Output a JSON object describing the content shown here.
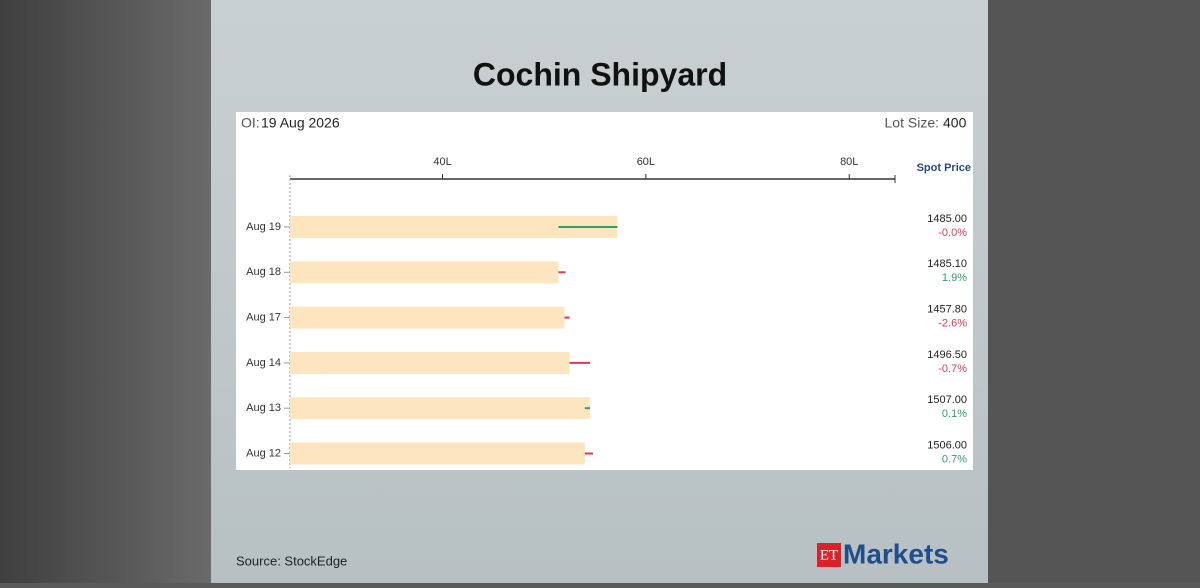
{
  "chart_data": {
    "type": "oi-bar",
    "title": "Cochin Shipyard",
    "oi_label": "OI:",
    "oi_date": "19 Aug 2026",
    "lot_label": "Lot Size:",
    "lot_size": 400,
    "spot_header": "Spot Price",
    "categories": [
      "Aug 19",
      "Aug 18",
      "Aug 17",
      "Aug 14",
      "Aug 13",
      "Aug 12"
    ],
    "values": [
      57.2,
      51.4,
      52.0,
      52.5,
      54.5,
      54.0
    ],
    "changes": [
      5.8,
      -0.7,
      -0.5,
      -2.0,
      0.5,
      -0.8
    ],
    "color": "#fde5c0",
    "increase_color": "#2e9e6a",
    "decrease_color": "#e0384f",
    "spot_prices": [
      "1485.00",
      "1485.10",
      "1457.80",
      "1496.50",
      "1507.00",
      "1506.00"
    ],
    "spot_changes": [
      "-0.0%",
      "1.9%",
      "-2.6%",
      "-0.7%",
      "0.1%",
      "0.7%"
    ],
    "xlim": [
      25,
      84.5
    ],
    "xticks": [
      {
        "value": 40,
        "label": "40L"
      },
      {
        "value": 60,
        "label": "60L"
      },
      {
        "value": 80,
        "label": "80L"
      }
    ],
    "source": "Source:  StockEdge",
    "logo_a": "ET",
    "logo_b": "Markets"
  }
}
